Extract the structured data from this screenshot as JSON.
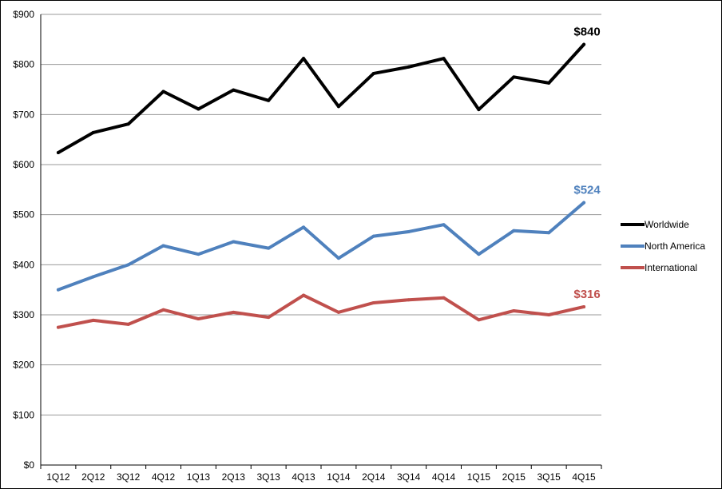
{
  "chart_data": {
    "type": "line",
    "title": "",
    "xlabel": "",
    "ylabel": "",
    "ylim": [
      0,
      900
    ],
    "grid": "horizontal",
    "legend_position": "right",
    "categories": [
      "1Q12",
      "2Q12",
      "3Q12",
      "4Q12",
      "1Q13",
      "2Q13",
      "3Q13",
      "4Q13",
      "1Q14",
      "2Q14",
      "3Q14",
      "4Q14",
      "1Q15",
      "2Q15",
      "3Q15",
      "4Q15"
    ],
    "y_ticks": [
      {
        "value": 0,
        "label": "$0"
      },
      {
        "value": 100,
        "label": "$100"
      },
      {
        "value": 200,
        "label": "$200"
      },
      {
        "value": 300,
        "label": "$300"
      },
      {
        "value": 400,
        "label": "$400"
      },
      {
        "value": 500,
        "label": "$500"
      },
      {
        "value": 600,
        "label": "$600"
      },
      {
        "value": 700,
        "label": "$700"
      },
      {
        "value": 800,
        "label": "$800"
      },
      {
        "value": 900,
        "label": "$900"
      }
    ],
    "series": [
      {
        "name": "Worldwide",
        "color": "#000000",
        "values": [
          624,
          664,
          681,
          746,
          711,
          749,
          728,
          812,
          716,
          782,
          795,
          812,
          710,
          775,
          763,
          840
        ],
        "end_label": "$840"
      },
      {
        "name": "North America",
        "color": "#4f81bd",
        "values": [
          350,
          376,
          400,
          438,
          421,
          446,
          433,
          475,
          413,
          457,
          466,
          480,
          421,
          468,
          464,
          524
        ],
        "end_label": "$524"
      },
      {
        "name": "International",
        "color": "#c0504d",
        "values": [
          275,
          289,
          281,
          310,
          292,
          305,
          295,
          339,
          305,
          324,
          330,
          334,
          290,
          308,
          300,
          316
        ],
        "end_label": "$316"
      }
    ]
  }
}
